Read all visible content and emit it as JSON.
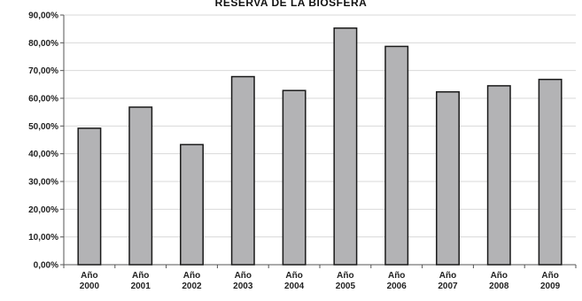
{
  "chart_data": {
    "type": "bar",
    "title": "RESERVA DE LA BIOSFERA",
    "xlabel": "",
    "ylabel": "",
    "categories": [
      [
        "Año",
        "2000"
      ],
      [
        "Año",
        "2001"
      ],
      [
        "Año",
        "2002"
      ],
      [
        "Año",
        "2003"
      ],
      [
        "Año",
        "2004"
      ],
      [
        "Año",
        "2005"
      ],
      [
        "Año",
        "2006"
      ],
      [
        "Año",
        "2007"
      ],
      [
        "Año",
        "2008"
      ],
      [
        "Año",
        "2009"
      ]
    ],
    "values": [
      49.2,
      56.8,
      43.3,
      67.8,
      62.8,
      85.3,
      78.7,
      62.3,
      64.5,
      66.8
    ],
    "y_ticks": [
      "0,00%",
      "10,00%",
      "20,00%",
      "30,00%",
      "40,00%",
      "50,00%",
      "60,00%",
      "70,00%",
      "80,00%",
      "90,00%"
    ],
    "ylim": [
      0,
      90
    ],
    "grid": true,
    "legend": "none",
    "colors": {
      "bar_fill": "#b3b3b5",
      "bar_stroke": "#1a1a1a",
      "grid": "#d9d9d9",
      "axis": "#555555"
    }
  }
}
